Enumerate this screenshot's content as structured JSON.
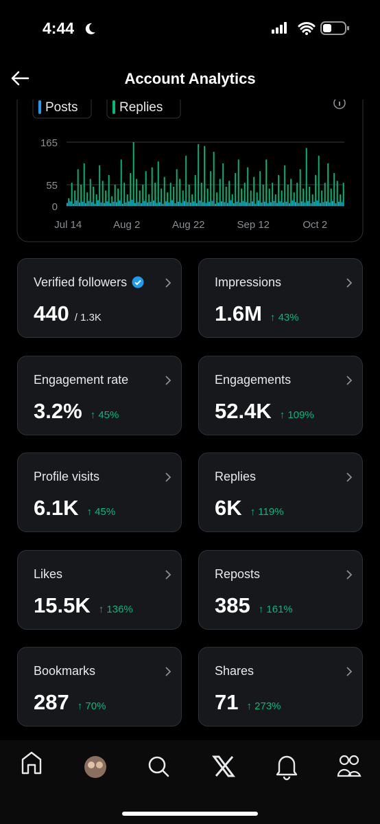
{
  "status_bar": {
    "time": "4:44"
  },
  "header": {
    "title": "Account Analytics"
  },
  "chart_data": {
    "type": "bar",
    "categories": [
      "Jul 14",
      null,
      null,
      null,
      null,
      null,
      null,
      null,
      null,
      null,
      null,
      null,
      null,
      null,
      null,
      null,
      null,
      null,
      null,
      "Aug 2",
      null,
      null,
      null,
      null,
      null,
      null,
      null,
      null,
      null,
      null,
      null,
      null,
      null,
      null,
      null,
      null,
      null,
      null,
      null,
      "Aug 22",
      null,
      null,
      null,
      null,
      null,
      null,
      null,
      null,
      null,
      null,
      null,
      null,
      null,
      null,
      null,
      null,
      null,
      null,
      null,
      null,
      "Sep 12",
      null,
      null,
      null,
      null,
      null,
      null,
      null,
      null,
      null,
      null,
      null,
      null,
      null,
      null,
      null,
      null,
      null,
      null,
      null,
      "Oct 2",
      null,
      null,
      null,
      null,
      null,
      null,
      null,
      null,
      null
    ],
    "series": [
      {
        "name": "Posts",
        "color": "#1d9bf0",
        "values": [
          8,
          12,
          6,
          14,
          9,
          11,
          7,
          13,
          10,
          6,
          15,
          9,
          8,
          12,
          7,
          11,
          10,
          14,
          6,
          9,
          12,
          16,
          8,
          10,
          7,
          13,
          9,
          11,
          14,
          8,
          10,
          6,
          12,
          9,
          15,
          7,
          11,
          8,
          13,
          10,
          9,
          12,
          7,
          14,
          10,
          8,
          11,
          13,
          6,
          9,
          12,
          10,
          8,
          15,
          7,
          11,
          9,
          13,
          10,
          8,
          12,
          6,
          14,
          9,
          11,
          7,
          10,
          13,
          8,
          12,
          9,
          11,
          7,
          14,
          10,
          8,
          12,
          9,
          13,
          7,
          11,
          14,
          8,
          10,
          12,
          9,
          13,
          7,
          11,
          10
        ]
      },
      {
        "name": "Replies",
        "color": "#00ba7c",
        "values": [
          20,
          60,
          40,
          95,
          55,
          110,
          35,
          70,
          50,
          30,
          105,
          65,
          40,
          80,
          25,
          55,
          45,
          120,
          60,
          30,
          85,
          165,
          70,
          40,
          55,
          90,
          30,
          100,
          60,
          115,
          45,
          75,
          35,
          60,
          50,
          95,
          70,
          40,
          130,
          55,
          30,
          80,
          160,
          60,
          155,
          45,
          90,
          140,
          35,
          70,
          110,
          50,
          65,
          30,
          85,
          120,
          45,
          60,
          100,
          40,
          75,
          35,
          90,
          55,
          120,
          45,
          60,
          30,
          80,
          40,
          105,
          55,
          70,
          35,
          60,
          95,
          45,
          150,
          50,
          30,
          80,
          130,
          40,
          60,
          110,
          45,
          85,
          65,
          30,
          60
        ]
      }
    ],
    "ylim": [
      0,
      165
    ],
    "yticks": [
      0,
      55,
      165
    ],
    "grid": true
  },
  "cards": [
    {
      "label": "Verified followers",
      "value": "440",
      "secondary": "/ 1.3K"
    },
    {
      "label": "Impressions",
      "value": "1.6M",
      "change": "↑ 43%"
    },
    {
      "label": "Engagement rate",
      "value": "3.2%",
      "change": "↑ 45%"
    },
    {
      "label": "Engagements",
      "value": "52.4K",
      "change": "↑ 109%"
    },
    {
      "label": "Profile visits",
      "value": "6.1K",
      "change": "↑ 45%"
    },
    {
      "label": "Replies",
      "value": "6K",
      "change": "↑ 119%"
    },
    {
      "label": "Likes",
      "value": "15.5K",
      "change": "↑ 136%"
    },
    {
      "label": "Reposts",
      "value": "385",
      "change": "↑ 161%"
    },
    {
      "label": "Bookmarks",
      "value": "287",
      "change": "↑ 70%"
    },
    {
      "label": "Shares",
      "value": "71",
      "change": "↑ 273%"
    }
  ]
}
